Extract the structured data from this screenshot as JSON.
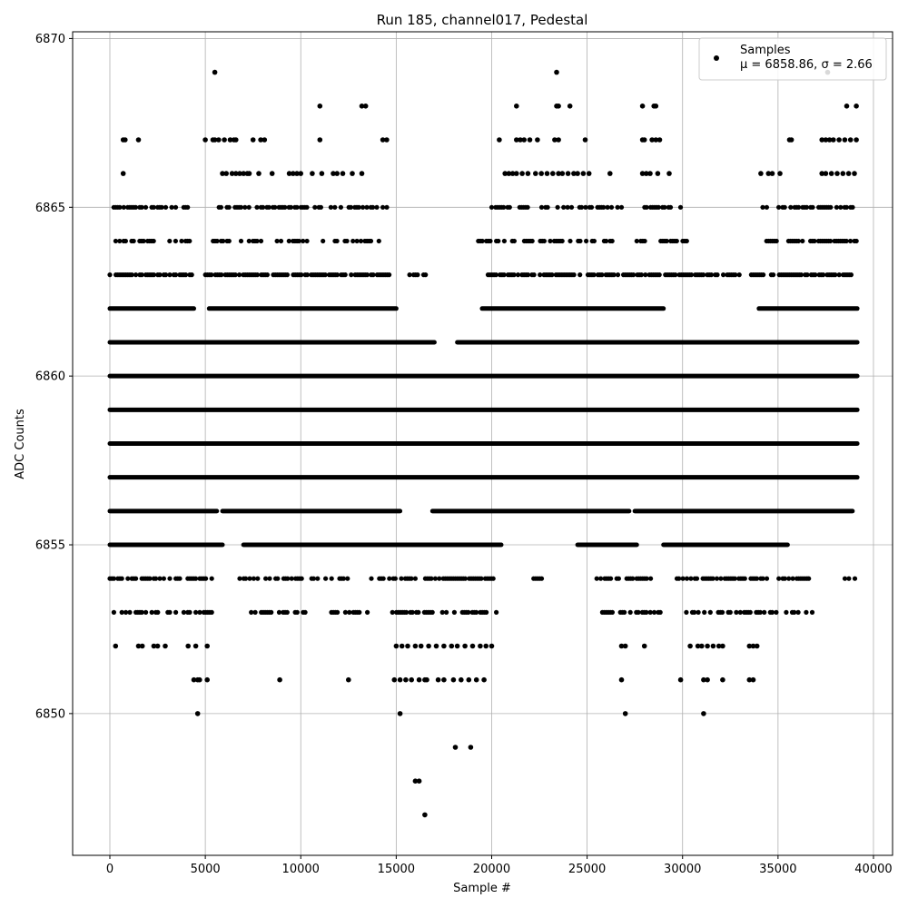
{
  "chart_data": {
    "type": "scatter",
    "title": "Run 185, channel017, Pedestal",
    "xlabel": "Sample #",
    "ylabel": "ADC Counts",
    "xlim": [
      -1950,
      41000
    ],
    "ylim": [
      6845.8,
      6870.2
    ],
    "xticks": [
      0,
      5000,
      10000,
      15000,
      20000,
      25000,
      30000,
      35000,
      40000
    ],
    "yticks": [
      6850,
      6855,
      6860,
      6865,
      6870
    ],
    "grid": true,
    "legend": {
      "position": "top-right",
      "entries": [
        {
          "label": "Samples",
          "stats": "μ = 6858.86, σ = 2.66",
          "marker": "circle",
          "color": "#000000"
        }
      ]
    },
    "series": [
      {
        "name": "Samples",
        "color": "#000000",
        "x_range": [
          0,
          39150
        ],
        "level_coverage": [
          {
            "y": 6856,
            "segments": [
              [
                0,
                5600
              ],
              [
                5900,
                15200
              ],
              [
                16900,
                27200
              ],
              [
                27500,
                38900
              ]
            ]
          },
          {
            "y": 6857,
            "segments": [
              [
                0,
                39150
              ]
            ]
          },
          {
            "y": 6858,
            "segments": [
              [
                0,
                39150
              ]
            ]
          },
          {
            "y": 6859,
            "segments": [
              [
                0,
                39150
              ]
            ]
          },
          {
            "y": 6860,
            "segments": [
              [
                0,
                39150
              ]
            ]
          },
          {
            "y": 6861,
            "segments": [
              [
                0,
                17000
              ],
              [
                18200,
                39150
              ]
            ]
          },
          {
            "y": 6855,
            "segments": [
              [
                0,
                5900
              ],
              [
                7000,
                16500
              ],
              [
                16000,
                20500
              ],
              [
                24500,
                27600
              ],
              [
                29000,
                35500
              ]
            ]
          },
          {
            "y": 6862,
            "segments": [
              [
                0,
                4400
              ],
              [
                5200,
                15000
              ],
              [
                19500,
                29000
              ],
              [
                34000,
                39150
              ]
            ]
          }
        ],
        "points": [
          [
            5500,
            6869
          ],
          [
            23400,
            6869
          ],
          [
            11000,
            6868
          ],
          [
            13200,
            6868
          ],
          [
            13400,
            6868
          ],
          [
            21300,
            6868
          ],
          [
            23400,
            6868
          ],
          [
            23500,
            6868
          ],
          [
            24100,
            6868
          ],
          [
            27900,
            6868
          ],
          [
            28500,
            6868
          ],
          [
            28600,
            6868
          ],
          [
            37600,
            6869
          ],
          [
            38600,
            6868
          ],
          [
            39100,
            6868
          ],
          [
            700,
            6867
          ],
          [
            800,
            6867
          ],
          [
            1500,
            6867
          ],
          [
            5000,
            6867
          ],
          [
            5400,
            6867
          ],
          [
            5500,
            6867
          ],
          [
            5700,
            6867
          ],
          [
            6000,
            6867
          ],
          [
            6300,
            6867
          ],
          [
            6500,
            6867
          ],
          [
            6600,
            6867
          ],
          [
            7500,
            6867
          ],
          [
            7900,
            6867
          ],
          [
            8100,
            6867
          ],
          [
            11000,
            6867
          ],
          [
            14300,
            6867
          ],
          [
            14500,
            6867
          ],
          [
            20400,
            6867
          ],
          [
            21300,
            6867
          ],
          [
            21500,
            6867
          ],
          [
            21700,
            6867
          ],
          [
            22000,
            6867
          ],
          [
            22400,
            6867
          ],
          [
            23300,
            6867
          ],
          [
            23500,
            6867
          ],
          [
            24900,
            6867
          ],
          [
            27900,
            6867
          ],
          [
            28000,
            6867
          ],
          [
            28400,
            6867
          ],
          [
            28600,
            6867
          ],
          [
            28800,
            6867
          ],
          [
            35600,
            6867
          ],
          [
            35700,
            6867
          ],
          [
            37300,
            6867
          ],
          [
            37500,
            6867
          ],
          [
            37700,
            6867
          ],
          [
            37900,
            6867
          ],
          [
            38200,
            6867
          ],
          [
            38500,
            6867
          ],
          [
            38800,
            6867
          ],
          [
            39100,
            6867
          ],
          [
            700,
            6866
          ],
          [
            5900,
            6866
          ],
          [
            6100,
            6866
          ],
          [
            6400,
            6866
          ],
          [
            6600,
            6866
          ],
          [
            6800,
            6866
          ],
          [
            7000,
            6866
          ],
          [
            7200,
            6866
          ],
          [
            7300,
            6866
          ],
          [
            7800,
            6866
          ],
          [
            8500,
            6866
          ],
          [
            9400,
            6866
          ],
          [
            9600,
            6866
          ],
          [
            9800,
            6866
          ],
          [
            10000,
            6866
          ],
          [
            10600,
            6866
          ],
          [
            11100,
            6866
          ],
          [
            11700,
            6866
          ],
          [
            11900,
            6866
          ],
          [
            12200,
            6866
          ],
          [
            12700,
            6866
          ],
          [
            13200,
            6866
          ],
          [
            20700,
            6866
          ],
          [
            20900,
            6866
          ],
          [
            21100,
            6866
          ],
          [
            21300,
            6866
          ],
          [
            21600,
            6866
          ],
          [
            21900,
            6866
          ],
          [
            22300,
            6866
          ],
          [
            22600,
            6866
          ],
          [
            22900,
            6866
          ],
          [
            23200,
            6866
          ],
          [
            23500,
            6866
          ],
          [
            23700,
            6866
          ],
          [
            24000,
            6866
          ],
          [
            24300,
            6866
          ],
          [
            24500,
            6866
          ],
          [
            24800,
            6866
          ],
          [
            25100,
            6866
          ],
          [
            26200,
            6866
          ],
          [
            27900,
            6866
          ],
          [
            28100,
            6866
          ],
          [
            28300,
            6866
          ],
          [
            28700,
            6866
          ],
          [
            29300,
            6866
          ],
          [
            34100,
            6866
          ],
          [
            34500,
            6866
          ],
          [
            34700,
            6866
          ],
          [
            35100,
            6866
          ],
          [
            37300,
            6866
          ],
          [
            37500,
            6866
          ],
          [
            37800,
            6866
          ],
          [
            38100,
            6866
          ],
          [
            38400,
            6866
          ],
          [
            38700,
            6866
          ],
          [
            39000,
            6866
          ],
          [
            1500,
            6852
          ],
          [
            1700,
            6852
          ],
          [
            2300,
            6852
          ],
          [
            2500,
            6852
          ],
          [
            2900,
            6852
          ],
          [
            4100,
            6852
          ],
          [
            4500,
            6852
          ],
          [
            5100,
            6852
          ],
          [
            15000,
            6852
          ],
          [
            15300,
            6852
          ],
          [
            15600,
            6852
          ],
          [
            16000,
            6852
          ],
          [
            16300,
            6852
          ],
          [
            16700,
            6852
          ],
          [
            17100,
            6852
          ],
          [
            17500,
            6852
          ],
          [
            17900,
            6852
          ],
          [
            18200,
            6852
          ],
          [
            18600,
            6852
          ],
          [
            19000,
            6852
          ],
          [
            19400,
            6852
          ],
          [
            19700,
            6852
          ],
          [
            20000,
            6852
          ],
          [
            26800,
            6852
          ],
          [
            27000,
            6852
          ],
          [
            28000,
            6852
          ],
          [
            30400,
            6852
          ],
          [
            30800,
            6852
          ],
          [
            31000,
            6852
          ],
          [
            31300,
            6852
          ],
          [
            31600,
            6852
          ],
          [
            31900,
            6852
          ],
          [
            32100,
            6852
          ],
          [
            33500,
            6852
          ],
          [
            33700,
            6852
          ],
          [
            33900,
            6852
          ],
          [
            300,
            6852
          ],
          [
            4400,
            6851
          ],
          [
            4600,
            6851
          ],
          [
            4700,
            6851
          ],
          [
            5100,
            6851
          ],
          [
            8900,
            6851
          ],
          [
            12500,
            6851
          ],
          [
            14900,
            6851
          ],
          [
            15200,
            6851
          ],
          [
            15500,
            6851
          ],
          [
            15800,
            6851
          ],
          [
            16200,
            6851
          ],
          [
            16500,
            6851
          ],
          [
            16600,
            6851
          ],
          [
            17200,
            6851
          ],
          [
            17500,
            6851
          ],
          [
            18000,
            6851
          ],
          [
            18400,
            6851
          ],
          [
            18800,
            6851
          ],
          [
            19200,
            6851
          ],
          [
            19600,
            6851
          ],
          [
            26800,
            6851
          ],
          [
            29900,
            6851
          ],
          [
            31100,
            6851
          ],
          [
            31300,
            6851
          ],
          [
            32100,
            6851
          ],
          [
            33500,
            6851
          ],
          [
            33700,
            6851
          ],
          [
            4600,
            6850
          ],
          [
            15200,
            6850
          ],
          [
            27000,
            6850
          ],
          [
            31100,
            6850
          ],
          [
            18100,
            6849
          ],
          [
            18900,
            6849
          ],
          [
            16000,
            6848
          ],
          [
            16200,
            6848
          ],
          [
            16500,
            6847
          ]
        ],
        "sparse_levels": [
          {
            "y": 6865,
            "segments": [
              [
                100,
                4200
              ],
              [
                5300,
                14600
              ],
              [
                20000,
                27000
              ],
              [
                27800,
                30000
              ],
              [
                34200,
                39150
              ]
            ],
            "density": 0.55
          },
          {
            "y": 6864,
            "segments": [
              [
                200,
                4300
              ],
              [
                5200,
                14100
              ],
              [
                19300,
                26500
              ],
              [
                27600,
                30400
              ],
              [
                34400,
                39150
              ]
            ],
            "density": 0.5
          },
          {
            "y": 6863,
            "segments": [
              [
                0,
                4300
              ],
              [
                4900,
                14700
              ],
              [
                15700,
                16700
              ],
              [
                19600,
                26700
              ],
              [
                26900,
                33000
              ],
              [
                33600,
                39150
              ]
            ],
            "density": 0.75
          },
          {
            "y": 6854,
            "segments": [
              [
                0,
                5400
              ],
              [
                6800,
                12900
              ],
              [
                13700,
                20300
              ],
              [
                22200,
                23000
              ],
              [
                25400,
                28600
              ],
              [
                29600,
                36700
              ],
              [
                38400,
                39100
              ]
            ],
            "density": 0.6
          },
          {
            "y": 6853,
            "segments": [
              [
                0,
                5400
              ],
              [
                7300,
                10500
              ],
              [
                11500,
                13600
              ],
              [
                14800,
                20300
              ],
              [
                22300,
                22800
              ],
              [
                25800,
                29000
              ],
              [
                30200,
                36800
              ]
            ],
            "density": 0.5
          }
        ]
      }
    ]
  }
}
